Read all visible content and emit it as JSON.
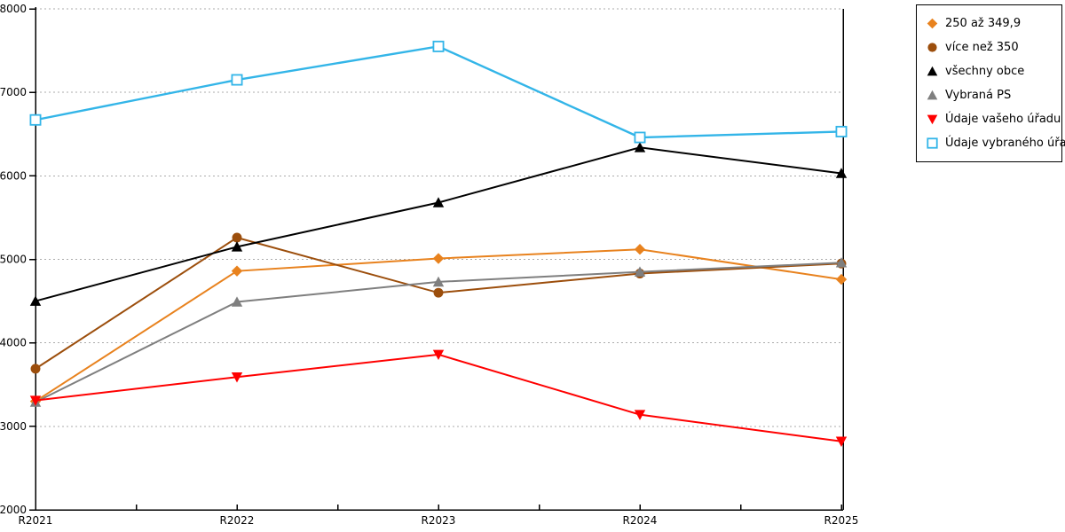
{
  "chart_data": {
    "type": "line",
    "title": "",
    "categories": [
      "R2021",
      "R2022",
      "R2023",
      "R2024",
      "R2025"
    ],
    "series": [
      {
        "id": "250-az-349-9",
        "name": "250 až 349,9",
        "marker": "diamond",
        "color": "#E8821E",
        "values": [
          3300,
          4860,
          5010,
          5120,
          4760
        ]
      },
      {
        "id": "vice-nez-350",
        "name": "více než 350",
        "marker": "circle",
        "color": "#9C4E0C",
        "values": [
          3690,
          5260,
          4600,
          4830,
          4950
        ]
      },
      {
        "id": "vsechny-obce",
        "name": "všechny obce",
        "marker": "triangle-up",
        "color": "#000000",
        "values": [
          4500,
          5150,
          5680,
          6340,
          6030
        ]
      },
      {
        "id": "vybrana-ps",
        "name": "Vybraná PS",
        "marker": "triangle-up",
        "color": "#7F7F7F",
        "values": [
          3290,
          4490,
          4730,
          4850,
          4960
        ]
      },
      {
        "id": "udaje-vaseho-uradu",
        "name": "Údaje vašeho úřadu",
        "marker": "triangle-down",
        "color": "#FF0000",
        "values": [
          3310,
          3590,
          3860,
          3140,
          2820
        ]
      },
      {
        "id": "udaje-vybraneho-uradu",
        "name": "Údaje vybraného úřadu",
        "marker": "square-open",
        "color": "#33B5E8",
        "values": [
          6670,
          7150,
          7550,
          6460,
          6530
        ]
      }
    ],
    "ylim": [
      2000,
      8000
    ],
    "ytick_step": 1000,
    "ytick_labels": [
      "2000",
      "3000",
      "4000",
      "5000",
      "6000",
      "7000",
      "8000"
    ],
    "grid": "horizontal-dotted",
    "legend_position": "outside-top-right",
    "xlabel": "",
    "ylabel": ""
  },
  "colors": {
    "background": "#FFFFFF",
    "grid": "#ABABAB",
    "axis": "#000000",
    "legend_border": "#000000"
  }
}
